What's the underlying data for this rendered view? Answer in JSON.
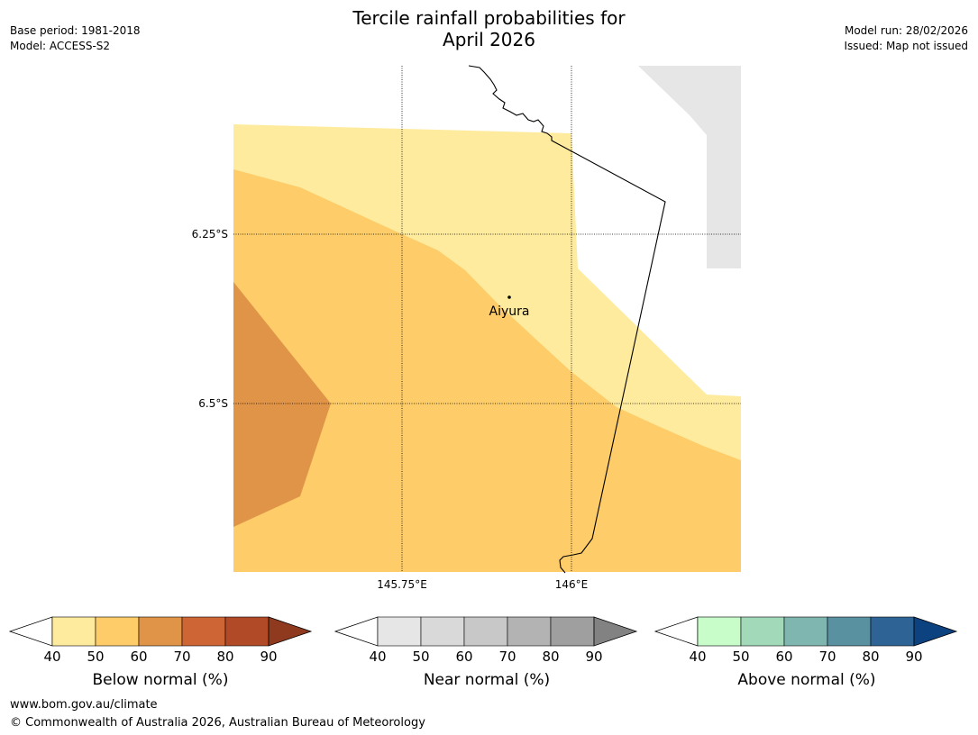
{
  "title_line1": "Tercile rainfall probabilities for",
  "title_line2": "April 2026",
  "meta_left": {
    "base_period": "Base period: 1981-2018",
    "model": "Model: ACCESS-S2"
  },
  "meta_right": {
    "model_run": "Model run: 28/02/2026",
    "issued": "Issued: Map not issued"
  },
  "map": {
    "lat_labels": [
      "6.25°S",
      "6.5°S"
    ],
    "lon_labels": [
      "145.75°E",
      "146°E"
    ],
    "place": "Aiyura",
    "colors": {
      "b40": "#ffeb9e",
      "b50": "#fecc68",
      "b60": "#e09447",
      "land_na": "#e6e6e6"
    }
  },
  "colorbars": [
    {
      "label": "Below normal (%)",
      "ticks": [
        "40",
        "50",
        "60",
        "70",
        "80",
        "90"
      ],
      "colors": [
        "#ffeb9e",
        "#fecc68",
        "#e09447",
        "#cd6534",
        "#b04a27",
        "#8f3a1f"
      ]
    },
    {
      "label": "Near normal (%)",
      "ticks": [
        "40",
        "50",
        "60",
        "70",
        "80",
        "90"
      ],
      "colors": [
        "#e6e6e6",
        "#d9d9d9",
        "#c8c8c8",
        "#b3b3b3",
        "#9f9f9f",
        "#828282"
      ]
    },
    {
      "label": "Above normal (%)",
      "ticks": [
        "40",
        "50",
        "60",
        "70",
        "80",
        "90"
      ],
      "colors": [
        "#c8fdca",
        "#a2d9b9",
        "#80b6b0",
        "#5a91a0",
        "#2e6395",
        "#0c4280"
      ]
    }
  ],
  "footer": {
    "url": "www.bom.gov.au/climate",
    "copyright": "© Commonwealth of Australia 2026, Australian Bureau of Meteorology"
  }
}
